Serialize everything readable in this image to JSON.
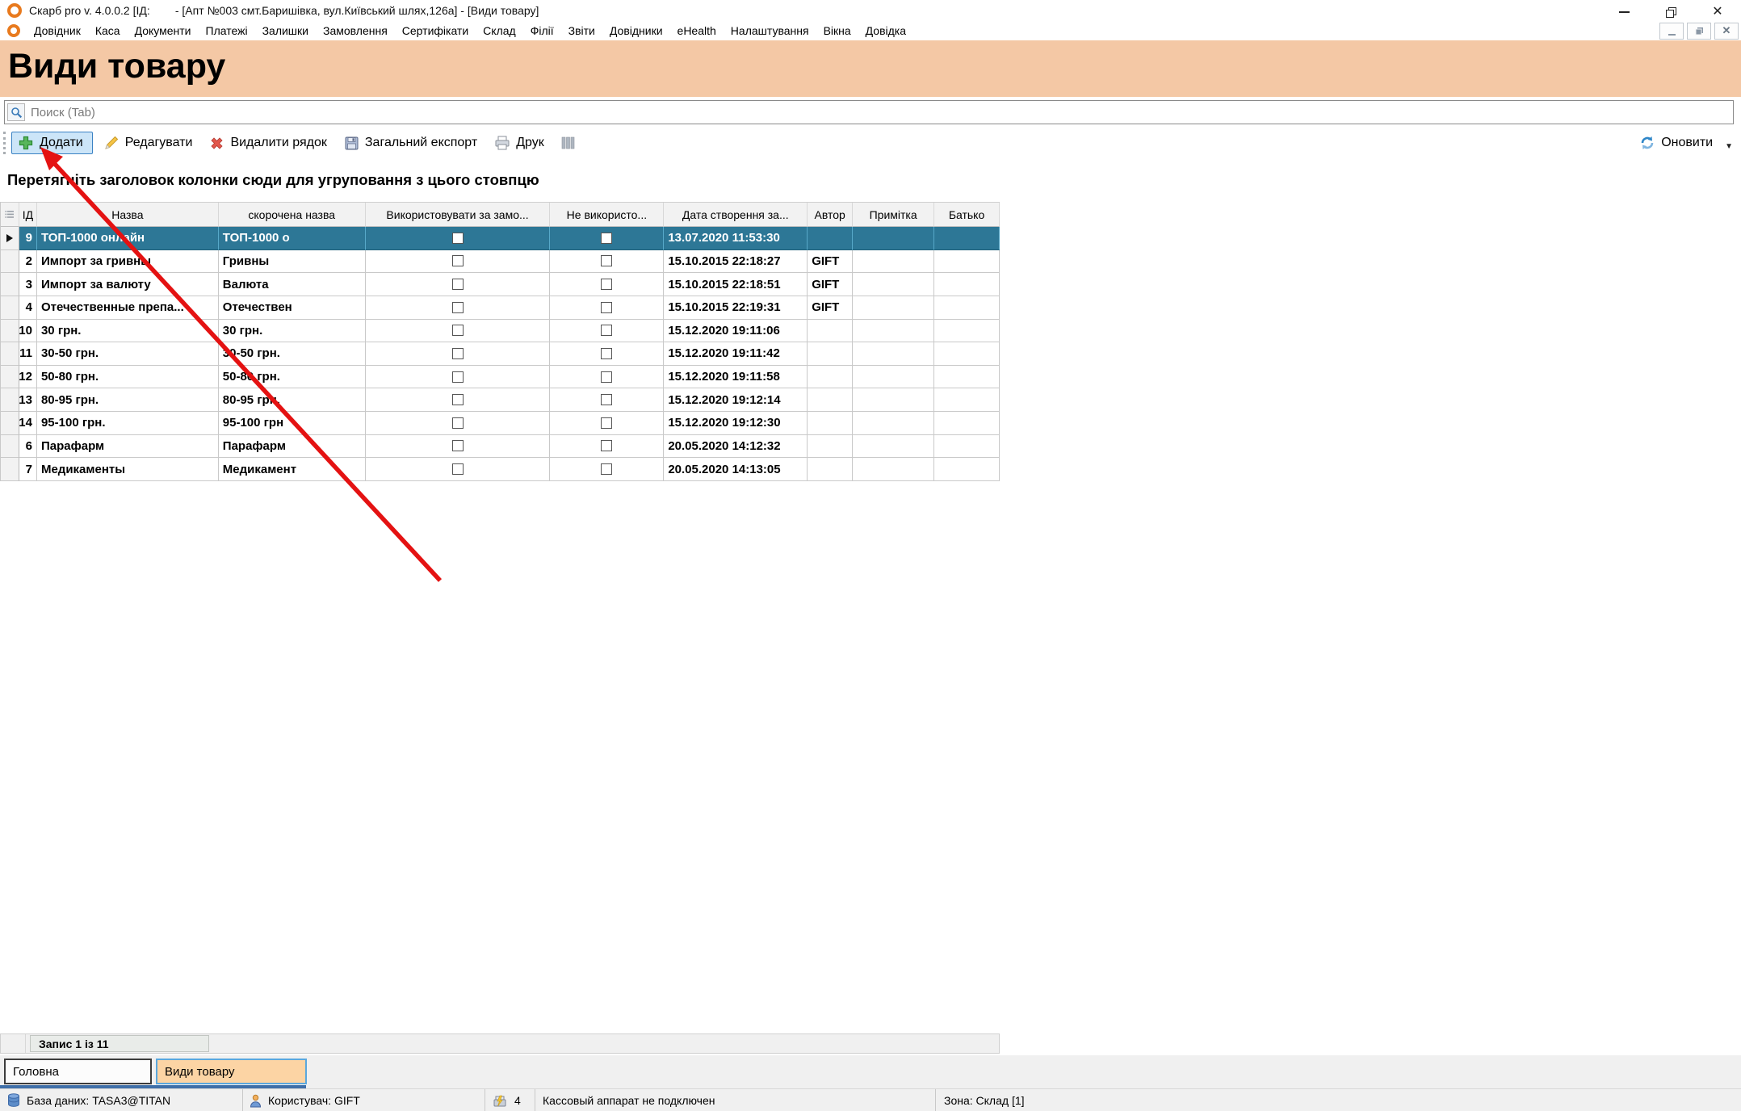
{
  "window": {
    "title": "Скарб pro v. 4.0.0.2 [ІД:        - [Апт №003 смт.Баришівка, вул.Київський шлях,126а] - [Види товару]"
  },
  "menu": {
    "items": [
      "Довідник",
      "Каса",
      "Документи",
      "Платежі",
      "Залишки",
      "Замовлення",
      "Сертифікати",
      "Склад",
      "Філії",
      "Звіти",
      "Довідники",
      "eHealth",
      "Налаштування",
      "Вікна",
      "Довідка"
    ]
  },
  "page": {
    "title": "Види товару"
  },
  "search": {
    "placeholder": "Поиск (Tab)",
    "value": ""
  },
  "toolbar": {
    "add": "Додати",
    "edit": "Редагувати",
    "delete": "Видалити рядок",
    "export": "Загальний експорт",
    "print": "Друк",
    "refresh": "Оновити"
  },
  "grid": {
    "group_hint": "Перетягніть заголовок колонки сюди для угруповання з цього стовпцю",
    "columns": [
      "ІД",
      "Назва",
      "скорочена назва",
      "Використовувати за замо...",
      "Не використо...",
      "Дата створення за...",
      "Автор",
      "Примітка",
      "Батько"
    ],
    "rows": [
      {
        "id": "9",
        "name": "ТОП-1000 онлайн",
        "short": "ТОП-1000 о",
        "created": "13.07.2020 11:53:30",
        "author": "",
        "note": "",
        "parent": "",
        "selected": true
      },
      {
        "id": "2",
        "name": "Импорт за гривны",
        "short": "Гривны",
        "created": "15.10.2015 22:18:27",
        "author": "GIFT",
        "note": "",
        "parent": "",
        "selected": false
      },
      {
        "id": "3",
        "name": "Импорт за валюту",
        "short": "Валюта",
        "created": "15.10.2015 22:18:51",
        "author": "GIFT",
        "note": "",
        "parent": "",
        "selected": false
      },
      {
        "id": "4",
        "name": "Отечественные препа...",
        "short": "Отечествен",
        "created": "15.10.2015 22:19:31",
        "author": "GIFT",
        "note": "",
        "parent": "",
        "selected": false
      },
      {
        "id": "10",
        "name": "30 грн.",
        "short": "30 грн.",
        "created": "15.12.2020 19:11:06",
        "author": "",
        "note": "",
        "parent": "",
        "selected": false
      },
      {
        "id": "11",
        "name": "30-50 грн.",
        "short": "30-50 грн.",
        "created": "15.12.2020 19:11:42",
        "author": "",
        "note": "",
        "parent": "",
        "selected": false
      },
      {
        "id": "12",
        "name": "50-80 грн.",
        "short": "50-80 грн.",
        "created": "15.12.2020 19:11:58",
        "author": "",
        "note": "",
        "parent": "",
        "selected": false
      },
      {
        "id": "13",
        "name": "80-95 грн.",
        "short": "80-95 грн.",
        "created": "15.12.2020 19:12:14",
        "author": "",
        "note": "",
        "parent": "",
        "selected": false
      },
      {
        "id": "14",
        "name": "95-100 грн.",
        "short": "95-100 грн",
        "created": "15.12.2020 19:12:30",
        "author": "",
        "note": "",
        "parent": "",
        "selected": false
      },
      {
        "id": "6",
        "name": "Парафарм",
        "short": "Парафарм",
        "created": "20.05.2020 14:12:32",
        "author": "",
        "note": "",
        "parent": "",
        "selected": false
      },
      {
        "id": "7",
        "name": "Медикаменты",
        "short": "Медикамент",
        "created": "20.05.2020 14:13:05",
        "author": "",
        "note": "",
        "parent": "",
        "selected": false
      }
    ],
    "record_status": "Запис 1 із 11"
  },
  "tabs": [
    {
      "label": "Головна",
      "active": false
    },
    {
      "label": "Види товару",
      "active": true
    }
  ],
  "statusbar": {
    "database": "База даних: TASA3@TITAN",
    "user": "Користувач: GIFT",
    "cash_count": "4",
    "cash_status": "Кассовый аппарат не подключен",
    "zone": "Зона: Склад [1]"
  },
  "icons": {
    "app": "orange-ring-logo",
    "search": "magnifier",
    "add": "green-plus",
    "edit": "yellow-pencil",
    "delete": "red-x",
    "export": "floppy-disk",
    "print": "printer",
    "columns": "column-list",
    "refresh": "blue-circular-arrows",
    "database": "database-cylinder",
    "user": "person",
    "cash": "cash-register-lightning"
  },
  "colors": {
    "banner_bg": "#f4c8a5",
    "selected_row_bg": "#2d7796",
    "active_tab_bg": "#fcd4a4",
    "add_button_bg": "#cce5f8",
    "add_button_border": "#3b82c4",
    "annotation_arrow": "#e41212"
  }
}
